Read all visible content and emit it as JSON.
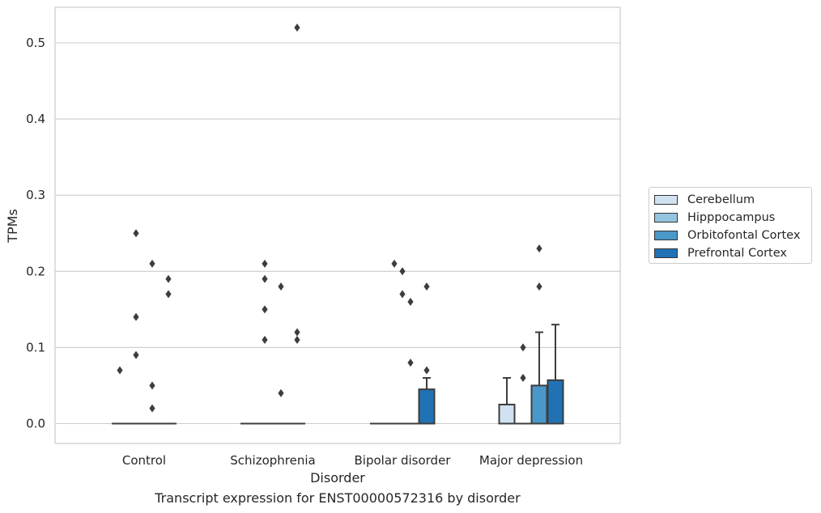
{
  "caption": "Transcript expression for ENST00000572316 by disorder",
  "chart_data": {
    "type": "box",
    "xlabel": "Disorder",
    "ylabel": "TPMs",
    "ylim": [
      -0.025,
      0.547
    ],
    "yticks": [
      "0.0",
      "0.1",
      "0.2",
      "0.3",
      "0.4",
      "0.5"
    ],
    "grid": "horizontal",
    "legend_position": "right",
    "categories": [
      "Control",
      "Schizophrenia",
      "Bipolar disorder",
      "Major depression"
    ],
    "series": [
      {
        "name": "Cerebellum",
        "color": "#d0e1f2",
        "boxes": [
          {
            "q1": 0,
            "median": 0,
            "q3": 0,
            "whisker_low": 0,
            "whisker_high": 0,
            "outliers": [
              0.07
            ]
          },
          {
            "q1": 0,
            "median": 0,
            "q3": 0,
            "whisker_low": 0,
            "whisker_high": 0,
            "outliers": []
          },
          {
            "q1": 0,
            "median": 0,
            "q3": 0,
            "whisker_low": 0,
            "whisker_high": 0,
            "outliers": []
          },
          {
            "q1": 0,
            "median": 0,
            "q3": 0.025,
            "whisker_low": 0,
            "whisker_high": 0.06,
            "outliers": []
          }
        ]
      },
      {
        "name": "Hipppocampus",
        "color": "#94c4df",
        "boxes": [
          {
            "q1": 0,
            "median": 0,
            "q3": 0,
            "whisker_low": 0,
            "whisker_high": 0,
            "outliers": [
              0.25,
              0.14,
              0.09
            ]
          },
          {
            "q1": 0,
            "median": 0,
            "q3": 0,
            "whisker_low": 0,
            "whisker_high": 0,
            "outliers": [
              0.21,
              0.19,
              0.15,
              0.11
            ]
          },
          {
            "q1": 0,
            "median": 0,
            "q3": 0,
            "whisker_low": 0,
            "whisker_high": 0,
            "outliers": [
              0.21
            ]
          },
          {
            "q1": 0,
            "median": 0,
            "q3": 0,
            "whisker_low": 0,
            "whisker_high": 0,
            "outliers": [
              0.1,
              0.06
            ]
          }
        ]
      },
      {
        "name": "Orbitofontal Cortex",
        "color": "#4a98c9",
        "boxes": [
          {
            "q1": 0,
            "median": 0,
            "q3": 0,
            "whisker_low": 0,
            "whisker_high": 0,
            "outliers": [
              0.21,
              0.05,
              0.02
            ]
          },
          {
            "q1": 0,
            "median": 0,
            "q3": 0,
            "whisker_low": 0,
            "whisker_high": 0,
            "outliers": [
              0.18,
              0.04
            ]
          },
          {
            "q1": 0,
            "median": 0,
            "q3": 0,
            "whisker_low": 0,
            "whisker_high": 0,
            "outliers": [
              0.16,
              0.08
            ]
          },
          {
            "q1": 0,
            "median": 0,
            "q3": 0.05,
            "whisker_low": 0,
            "whisker_high": 0.12,
            "outliers": [
              0.23,
              0.18
            ]
          }
        ]
      },
      {
        "name": "Prefrontal Cortex",
        "color": "#2171b5",
        "boxes": [
          {
            "q1": 0,
            "median": 0,
            "q3": 0,
            "whisker_low": 0,
            "whisker_high": 0,
            "outliers": [
              0.19,
              0.17
            ]
          },
          {
            "q1": 0,
            "median": 0,
            "q3": 0,
            "whisker_low": 0,
            "whisker_high": 0,
            "outliers": [
              0.52,
              0.12,
              0.11
            ]
          },
          {
            "q1": 0,
            "median": 0,
            "q3": 0.045,
            "whisker_low": 0,
            "whisker_high": 0.06,
            "outliers": [
              0.18,
              0.07
            ]
          },
          {
            "q1": 0,
            "median": 0,
            "q3": 0.057,
            "whisker_low": 0,
            "whisker_high": 0.13,
            "outliers": []
          }
        ]
      }
    ],
    "extra_outliers": [
      {
        "category": 2,
        "x_offset": 1.5,
        "y": 0.2
      },
      {
        "category": 2,
        "x_offset": 1.5,
        "y": 0.17
      }
    ]
  }
}
